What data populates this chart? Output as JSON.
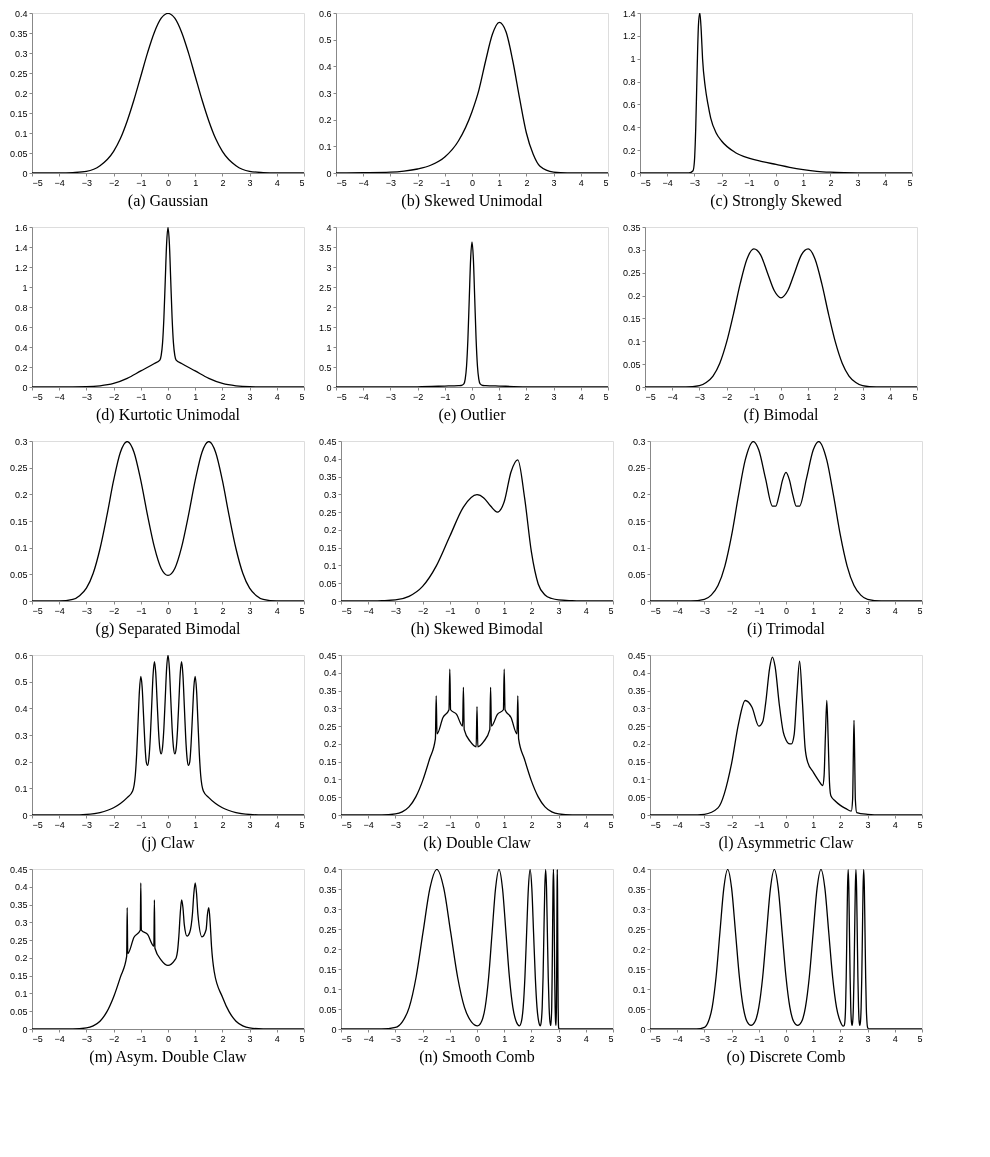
{
  "chart_data": [
    {
      "type": "line",
      "title": "(a) Gaussian",
      "color": "#000000",
      "xlim": [
        -5,
        5
      ],
      "xticks": [
        -5,
        -4,
        -3,
        -2,
        -1,
        0,
        1,
        2,
        3,
        4,
        5
      ],
      "ylim": [
        0,
        0.4
      ],
      "yticks": [
        0,
        0.05,
        0.1,
        0.15,
        0.2,
        0.25,
        0.3,
        0.35,
        0.4
      ],
      "x": [
        -5,
        -4,
        -3.5,
        -3,
        -2.5,
        -2,
        -1.75,
        -1.5,
        -1.25,
        -1,
        -0.75,
        -0.5,
        -0.25,
        0,
        0.25,
        0.5,
        0.75,
        1,
        1.25,
        1.5,
        1.75,
        2,
        2.5,
        3,
        3.5,
        4,
        5
      ],
      "values": [
        0,
        0,
        0.001,
        0.004,
        0.018,
        0.054,
        0.086,
        0.13,
        0.183,
        0.242,
        0.301,
        0.352,
        0.387,
        0.399,
        0.387,
        0.352,
        0.301,
        0.242,
        0.183,
        0.13,
        0.086,
        0.054,
        0.018,
        0.004,
        0.001,
        0,
        0
      ]
    },
    {
      "type": "line",
      "title": "(b) Skewed Unimodal",
      "color": "#000000",
      "xlim": [
        -5,
        5
      ],
      "xticks": [
        -5,
        -4,
        -3,
        -2,
        -1,
        0,
        1,
        2,
        3,
        4,
        5
      ],
      "ylim": [
        0,
        0.6
      ],
      "yticks": [
        0,
        0.1,
        0.2,
        0.3,
        0.4,
        0.5,
        0.6
      ],
      "x": [
        -5,
        -4,
        -3,
        -2.5,
        -2,
        -1.5,
        -1,
        -0.5,
        0,
        0.25,
        0.5,
        0.75,
        1,
        1.25,
        1.5,
        1.75,
        2,
        2.25,
        2.5,
        3,
        3.5,
        4,
        5
      ],
      "values": [
        0,
        0.001,
        0.003,
        0.007,
        0.015,
        0.03,
        0.06,
        0.12,
        0.23,
        0.31,
        0.42,
        0.52,
        0.565,
        0.53,
        0.42,
        0.28,
        0.15,
        0.07,
        0.025,
        0.003,
        0,
        0,
        0
      ]
    },
    {
      "type": "line",
      "title": "(c) Strongly Skewed",
      "color": "#000000",
      "xlim": [
        -5,
        5
      ],
      "xticks": [
        -5,
        -4,
        -3,
        -2,
        -1,
        0,
        1,
        2,
        3,
        4,
        5
      ],
      "ylim": [
        0,
        1.4
      ],
      "yticks": [
        0,
        0.2,
        0.4,
        0.6,
        0.8,
        1,
        1.2,
        1.4
      ],
      "x": [
        -5,
        -4,
        -3.2,
        -3.05,
        -3,
        -2.95,
        -2.9,
        -2.85,
        -2.8,
        -2.75,
        -2.7,
        -2.6,
        -2.5,
        -2.4,
        -2.2,
        -2,
        -1.5,
        -1,
        -0.5,
        0,
        0.5,
        1,
        1.5,
        2,
        2.5,
        3,
        4,
        5
      ],
      "values": [
        0,
        0,
        0,
        0.02,
        0.1,
        0.4,
        0.9,
        1.3,
        1.4,
        1.25,
        1.0,
        0.75,
        0.6,
        0.48,
        0.35,
        0.28,
        0.18,
        0.13,
        0.1,
        0.075,
        0.05,
        0.03,
        0.015,
        0.007,
        0.003,
        0.001,
        0,
        0
      ]
    },
    {
      "type": "line",
      "title": "(d) Kurtotic Unimodal",
      "color": "#000000",
      "xlim": [
        -5,
        5
      ],
      "xticks": [
        -5,
        -4,
        -3,
        -2,
        -1,
        0,
        1,
        2,
        3,
        4,
        5
      ],
      "ylim": [
        0,
        1.6
      ],
      "yticks": [
        0,
        0.2,
        0.4,
        0.6,
        0.8,
        1,
        1.2,
        1.4,
        1.6
      ],
      "x": [
        -5,
        -4,
        -3,
        -2.5,
        -2,
        -1.5,
        -1,
        -0.5,
        -0.3,
        -0.25,
        -0.2,
        -0.15,
        -0.1,
        -0.05,
        0,
        0.05,
        0.1,
        0.15,
        0.2,
        0.25,
        0.3,
        0.5,
        1,
        1.5,
        2,
        2.5,
        3,
        4,
        5
      ],
      "values": [
        0,
        0,
        0.003,
        0.012,
        0.036,
        0.087,
        0.161,
        0.235,
        0.269,
        0.316,
        0.441,
        0.695,
        1.071,
        1.439,
        1.596,
        1.439,
        1.071,
        0.695,
        0.441,
        0.316,
        0.269,
        0.235,
        0.161,
        0.087,
        0.036,
        0.012,
        0.003,
        0,
        0
      ]
    },
    {
      "type": "line",
      "title": "(e) Outlier",
      "color": "#000000",
      "xlim": [
        -5,
        5
      ],
      "xticks": [
        -5,
        -4,
        -3,
        -2,
        -1,
        0,
        1,
        2,
        3,
        4,
        5
      ],
      "ylim": [
        0,
        4
      ],
      "yticks": [
        0,
        0.5,
        1,
        1.5,
        2,
        2.5,
        3,
        3.5,
        4
      ],
      "x": [
        -5,
        -4,
        -3,
        -2,
        -1,
        -0.5,
        -0.4,
        -0.3,
        -0.25,
        -0.2,
        -0.15,
        -0.1,
        -0.05,
        0,
        0.05,
        0.1,
        0.15,
        0.2,
        0.25,
        0.3,
        0.4,
        0.5,
        1,
        2,
        3,
        4,
        5
      ],
      "values": [
        0,
        0,
        0,
        0.005,
        0.024,
        0.035,
        0.038,
        0.078,
        0.197,
        0.525,
        1.205,
        2.217,
        3.208,
        3.63,
        3.208,
        2.217,
        1.205,
        0.525,
        0.197,
        0.078,
        0.038,
        0.035,
        0.024,
        0.005,
        0,
        0,
        0
      ]
    },
    {
      "type": "line",
      "title": "(f) Bimodal",
      "color": "#000000",
      "xlim": [
        -5,
        5
      ],
      "xticks": [
        -5,
        -4,
        -3,
        -2,
        -1,
        0,
        1,
        2,
        3,
        4,
        5
      ],
      "ylim": [
        0,
        0.35
      ],
      "yticks": [
        0,
        0.05,
        0.1,
        0.15,
        0.2,
        0.25,
        0.3,
        0.35
      ],
      "x": [
        -5,
        -4,
        -3.5,
        -3,
        -2.75,
        -2.5,
        -2.25,
        -2,
        -1.75,
        -1.5,
        -1.25,
        -1,
        -0.75,
        -0.5,
        -0.25,
        0,
        0.25,
        0.5,
        0.75,
        1,
        1.25,
        1.5,
        1.75,
        2,
        2.25,
        2.5,
        2.75,
        3,
        3.5,
        4,
        5
      ],
      "values": [
        0,
        0,
        0,
        0.003,
        0.01,
        0.024,
        0.052,
        0.098,
        0.159,
        0.226,
        0.28,
        0.302,
        0.289,
        0.25,
        0.211,
        0.195,
        0.211,
        0.25,
        0.289,
        0.302,
        0.28,
        0.226,
        0.159,
        0.098,
        0.052,
        0.024,
        0.01,
        0.003,
        0,
        0,
        0
      ]
    },
    {
      "type": "line",
      "title": "(g) Separated Bimodal",
      "color": "#000000",
      "xlim": [
        -5,
        5
      ],
      "xticks": [
        -5,
        -4,
        -3,
        -2,
        -1,
        0,
        1,
        2,
        3,
        4,
        5
      ],
      "ylim": [
        0,
        0.3
      ],
      "yticks": [
        0,
        0.05,
        0.1,
        0.15,
        0.2,
        0.25,
        0.3
      ],
      "x": [
        -5,
        -4,
        -3.5,
        -3.25,
        -3,
        -2.75,
        -2.5,
        -2.25,
        -2,
        -1.75,
        -1.5,
        -1.25,
        -1,
        -0.75,
        -0.5,
        -0.25,
        0,
        0.25,
        0.5,
        0.75,
        1,
        1.25,
        1.5,
        1.75,
        2,
        2.25,
        2.5,
        2.75,
        3,
        3.25,
        3.5,
        4,
        5
      ],
      "values": [
        0,
        0,
        0.003,
        0.01,
        0.024,
        0.052,
        0.098,
        0.159,
        0.226,
        0.279,
        0.299,
        0.279,
        0.226,
        0.16,
        0.101,
        0.061,
        0.048,
        0.061,
        0.101,
        0.16,
        0.226,
        0.279,
        0.299,
        0.279,
        0.226,
        0.159,
        0.098,
        0.052,
        0.024,
        0.01,
        0.003,
        0,
        0
      ]
    },
    {
      "type": "line",
      "title": "(h) Skewed Bimodal",
      "color": "#000000",
      "xlim": [
        -5,
        5
      ],
      "xticks": [
        -5,
        -4,
        -3,
        -2,
        -1,
        0,
        1,
        2,
        3,
        4,
        5
      ],
      "ylim": [
        0,
        0.45
      ],
      "yticks": [
        0,
        0.05,
        0.1,
        0.15,
        0.2,
        0.25,
        0.3,
        0.35,
        0.4,
        0.45
      ],
      "x": [
        -5,
        -4,
        -3.5,
        -3,
        -2.5,
        -2,
        -1.5,
        -1,
        -0.5,
        0,
        0.25,
        0.5,
        0.75,
        1,
        1.25,
        1.5,
        1.75,
        2,
        2.25,
        2.5,
        2.75,
        3,
        3.5,
        4,
        5
      ],
      "values": [
        0,
        0,
        0.001,
        0.003,
        0.013,
        0.041,
        0.098,
        0.182,
        0.264,
        0.299,
        0.29,
        0.267,
        0.25,
        0.279,
        0.363,
        0.397,
        0.29,
        0.138,
        0.048,
        0.017,
        0.007,
        0.003,
        0.001,
        0,
        0
      ]
    },
    {
      "type": "line",
      "title": "(i) Trimodal",
      "color": "#000000",
      "xlim": [
        -5,
        5
      ],
      "xticks": [
        -5,
        -4,
        -3,
        -2,
        -1,
        0,
        1,
        2,
        3,
        4,
        5
      ],
      "ylim": [
        0,
        0.3
      ],
      "yticks": [
        0,
        0.05,
        0.1,
        0.15,
        0.2,
        0.25,
        0.3
      ],
      "x": [
        -5,
        -4,
        -3.5,
        -3,
        -2.75,
        -2.5,
        -2.25,
        -2,
        -1.75,
        -1.5,
        -1.2,
        -1,
        -0.75,
        -0.5,
        -0.375,
        -0.25,
        -0.125,
        0,
        0.125,
        0.25,
        0.375,
        0.5,
        0.75,
        1,
        1.2,
        1.5,
        1.75,
        2,
        2.25,
        2.5,
        2.75,
        3,
        3.5,
        4,
        5
      ],
      "values": [
        0,
        0,
        0,
        0.003,
        0.011,
        0.029,
        0.065,
        0.123,
        0.197,
        0.264,
        0.299,
        0.283,
        0.229,
        0.178,
        0.178,
        0.199,
        0.227,
        0.241,
        0.227,
        0.199,
        0.178,
        0.178,
        0.229,
        0.283,
        0.299,
        0.264,
        0.197,
        0.123,
        0.065,
        0.029,
        0.011,
        0.003,
        0,
        0,
        0
      ]
    },
    {
      "type": "line",
      "title": "(j) Claw",
      "color": "#000000",
      "xlim": [
        -5,
        5
      ],
      "xticks": [
        -5,
        -4,
        -3,
        -2,
        -1,
        0,
        1,
        2,
        3,
        4,
        5
      ],
      "ylim": [
        0,
        0.6
      ],
      "yticks": [
        0,
        0.1,
        0.2,
        0.3,
        0.4,
        0.5,
        0.6
      ],
      "x": [
        -5,
        -4,
        -3.5,
        -3,
        -2.5,
        -2,
        -1.75,
        -1.5,
        -1.3,
        -1.2,
        -1.15,
        -1.1,
        -1.05,
        -1,
        -0.95,
        -0.9,
        -0.85,
        -0.8,
        -0.75,
        -0.7,
        -0.65,
        -0.6,
        -0.55,
        -0.5,
        -0.45,
        -0.4,
        -0.35,
        -0.3,
        -0.25,
        -0.2,
        -0.15,
        -0.1,
        -0.05,
        0,
        0.05,
        0.1,
        0.15,
        0.2,
        0.25,
        0.3,
        0.35,
        0.4,
        0.45,
        0.5,
        0.55,
        0.6,
        0.65,
        0.7,
        0.75,
        0.8,
        0.85,
        0.9,
        0.95,
        1,
        1.05,
        1.1,
        1.15,
        1.2,
        1.3,
        1.5,
        1.75,
        2,
        2.5,
        3,
        3.5,
        4,
        5
      ],
      "values": [
        0,
        0,
        0,
        0.002,
        0.009,
        0.027,
        0.043,
        0.065,
        0.09,
        0.151,
        0.233,
        0.351,
        0.467,
        0.52,
        0.479,
        0.375,
        0.269,
        0.199,
        0.186,
        0.214,
        0.292,
        0.409,
        0.523,
        0.575,
        0.532,
        0.426,
        0.319,
        0.249,
        0.229,
        0.254,
        0.327,
        0.44,
        0.551,
        0.599,
        0.551,
        0.44,
        0.327,
        0.254,
        0.229,
        0.249,
        0.319,
        0.426,
        0.532,
        0.575,
        0.523,
        0.409,
        0.292,
        0.214,
        0.186,
        0.199,
        0.269,
        0.375,
        0.479,
        0.52,
        0.467,
        0.351,
        0.233,
        0.151,
        0.09,
        0.065,
        0.043,
        0.027,
        0.009,
        0.002,
        0,
        0,
        0
      ]
    },
    {
      "type": "line",
      "title": "(k) Double Claw",
      "color": "#000000",
      "xlim": [
        -5,
        5
      ],
      "xticks": [
        -5,
        -4,
        -3,
        -2,
        -1,
        0,
        1,
        2,
        3,
        4,
        5
      ],
      "ylim": [
        0,
        0.45
      ],
      "yticks": [
        0,
        0.05,
        0.1,
        0.15,
        0.2,
        0.25,
        0.3,
        0.35,
        0.4,
        0.45
      ],
      "x": [
        -5,
        -4,
        -3.5,
        -3,
        -2.75,
        -2.5,
        -2.25,
        -2,
        -1.75,
        -1.53,
        -1.5,
        -1.47,
        -1.25,
        -1.03,
        -1,
        -0.97,
        -0.75,
        -0.53,
        -0.5,
        -0.47,
        -0.25,
        -0.03,
        0,
        0.03,
        0.25,
        0.47,
        0.5,
        0.53,
        0.75,
        0.97,
        1,
        1.03,
        1.25,
        1.47,
        1.5,
        1.53,
        1.75,
        2,
        2.25,
        2.5,
        2.75,
        3,
        3.5,
        4,
        5
      ],
      "values": [
        0,
        0,
        0,
        0.003,
        0.009,
        0.023,
        0.051,
        0.096,
        0.156,
        0.214,
        0.335,
        0.228,
        0.274,
        0.296,
        0.41,
        0.296,
        0.283,
        0.25,
        0.359,
        0.24,
        0.207,
        0.192,
        0.305,
        0.192,
        0.207,
        0.24,
        0.359,
        0.25,
        0.283,
        0.296,
        0.41,
        0.296,
        0.274,
        0.228,
        0.335,
        0.214,
        0.156,
        0.096,
        0.051,
        0.023,
        0.009,
        0.003,
        0,
        0,
        0
      ]
    },
    {
      "type": "line",
      "title": "(l) Asymmetric Claw",
      "color": "#000000",
      "xlim": [
        -5,
        5
      ],
      "xticks": [
        -5,
        -4,
        -3,
        -2,
        -1,
        0,
        1,
        2,
        3,
        4,
        5
      ],
      "ylim": [
        0,
        0.45
      ],
      "yticks": [
        0,
        0.05,
        0.1,
        0.15,
        0.2,
        0.25,
        0.3,
        0.35,
        0.4,
        0.45
      ],
      "x": [
        -5,
        -4,
        -3.5,
        -3,
        -2.5,
        -2,
        -1.75,
        -1.5,
        -1.25,
        -1,
        -0.85,
        -0.75,
        -0.6,
        -0.5,
        -0.4,
        -0.25,
        -0.1,
        0,
        0.1,
        0.2,
        0.3,
        0.4,
        0.5,
        0.6,
        0.7,
        0.8,
        1,
        1.2,
        1.35,
        1.4,
        1.45,
        1.5,
        1.55,
        1.6,
        1.65,
        1.8,
        2,
        2.2,
        2.4,
        2.45,
        2.475,
        2.5,
        2.525,
        2.55,
        2.6,
        3,
        3.5,
        4,
        5
      ],
      "values": [
        0,
        0,
        0,
        0.002,
        0.02,
        0.145,
        0.255,
        0.322,
        0.303,
        0.25,
        0.264,
        0.313,
        0.414,
        0.444,
        0.417,
        0.313,
        0.233,
        0.211,
        0.201,
        0.2,
        0.226,
        0.34,
        0.433,
        0.323,
        0.191,
        0.148,
        0.121,
        0.097,
        0.083,
        0.11,
        0.225,
        0.322,
        0.216,
        0.09,
        0.054,
        0.04,
        0.027,
        0.018,
        0.011,
        0.045,
        0.165,
        0.266,
        0.164,
        0.043,
        0.007,
        0.002,
        0,
        0,
        0
      ]
    },
    {
      "type": "line",
      "title": "(m) Asym. Double Claw",
      "color": "#000000",
      "xlim": [
        -5,
        5
      ],
      "xticks": [
        -5,
        -4,
        -3,
        -2,
        -1,
        0,
        1,
        2,
        3,
        4,
        5
      ],
      "ylim": [
        0,
        0.45
      ],
      "yticks": [
        0,
        0.05,
        0.1,
        0.15,
        0.2,
        0.25,
        0.3,
        0.35,
        0.4,
        0.45
      ],
      "x": [
        -5,
        -4,
        -3.5,
        -3,
        -2.75,
        -2.5,
        -2.25,
        -2,
        -1.75,
        -1.52,
        -1.5,
        -1.48,
        -1.25,
        -1.02,
        -1,
        -0.98,
        -0.75,
        -0.52,
        -0.5,
        -0.48,
        -0.25,
        0,
        0.25,
        0.3,
        0.35,
        0.4,
        0.45,
        0.5,
        0.55,
        0.6,
        0.7,
        0.8,
        0.9,
        0.95,
        1,
        1.05,
        1.1,
        1.25,
        1.4,
        1.45,
        1.5,
        1.55,
        1.6,
        1.7,
        2,
        2.25,
        2.5,
        2.75,
        3,
        3.5,
        4,
        5
      ],
      "values": [
        0,
        0,
        0,
        0.003,
        0.009,
        0.022,
        0.048,
        0.09,
        0.146,
        0.204,
        0.341,
        0.212,
        0.258,
        0.278,
        0.411,
        0.278,
        0.266,
        0.233,
        0.363,
        0.227,
        0.194,
        0.179,
        0.194,
        0.2,
        0.219,
        0.262,
        0.325,
        0.363,
        0.341,
        0.293,
        0.261,
        0.272,
        0.325,
        0.381,
        0.411,
        0.381,
        0.322,
        0.259,
        0.279,
        0.322,
        0.341,
        0.299,
        0.232,
        0.161,
        0.09,
        0.048,
        0.022,
        0.009,
        0.003,
        0,
        0,
        0
      ]
    },
    {
      "type": "line",
      "title": "(n) Smooth Comb",
      "color": "#000000",
      "xlim": [
        -5,
        5
      ],
      "xticks": [
        -5,
        -4,
        -3,
        -2,
        -1,
        0,
        1,
        2,
        3,
        4,
        5
      ],
      "ylim": [
        0,
        0.4
      ],
      "yticks": [
        0,
        0.05,
        0.1,
        0.15,
        0.2,
        0.25,
        0.3,
        0.35,
        0.4
      ],
      "x": [
        -5,
        -4,
        -3.508,
        -3,
        -2.746,
        -2.492,
        -2.238,
        -1.984,
        -1.73,
        -1.476,
        -1.222,
        -0.968,
        -0.714,
        -0.46,
        -0.206,
        0.02,
        0.175,
        0.302,
        0.429,
        0.556,
        0.683,
        0.81,
        0.937,
        1.064,
        1.191,
        1.318,
        1.445,
        1.56,
        1.64,
        1.698,
        1.762,
        1.825,
        1.889,
        1.952,
        2.016,
        2.079,
        2.143,
        2.206,
        2.27,
        2.33,
        2.365,
        2.397,
        2.429,
        2.46,
        2.492,
        2.524,
        2.556,
        2.587,
        2.619,
        2.651,
        2.683,
        2.715,
        2.747,
        2.762,
        2.778,
        2.794,
        2.81,
        2.826,
        2.842,
        2.857,
        2.873,
        2.889,
        2.905,
        2.92,
        2.928,
        2.936,
        2.944,
        2.952,
        2.96,
        2.968,
        2.976,
        2.984,
        2.992,
        3,
        3.02,
        4,
        5
      ],
      "values": [
        0,
        0,
        0,
        0.004,
        0.018,
        0.054,
        0.13,
        0.242,
        0.352,
        0.399,
        0.352,
        0.242,
        0.13,
        0.054,
        0.018,
        0.008,
        0.02,
        0.055,
        0.13,
        0.242,
        0.352,
        0.399,
        0.352,
        0.242,
        0.13,
        0.054,
        0.018,
        0.008,
        0.021,
        0.054,
        0.13,
        0.242,
        0.352,
        0.399,
        0.352,
        0.242,
        0.13,
        0.054,
        0.018,
        0.008,
        0.02,
        0.054,
        0.13,
        0.242,
        0.352,
        0.399,
        0.352,
        0.242,
        0.13,
        0.054,
        0.018,
        0.009,
        0.054,
        0.13,
        0.242,
        0.352,
        0.399,
        0.352,
        0.242,
        0.13,
        0.054,
        0.018,
        0.009,
        0.054,
        0.13,
        0.242,
        0.352,
        0.399,
        0.352,
        0.242,
        0.13,
        0.054,
        0.018,
        0.004,
        0,
        0,
        0
      ]
    },
    {
      "type": "line",
      "title": "(o) Discrete Comb",
      "color": "#000000",
      "xlim": [
        -5,
        5
      ],
      "xticks": [
        -5,
        -4,
        -3,
        -2,
        -1,
        0,
        1,
        2,
        3,
        4,
        5
      ],
      "ylim": [
        0,
        0.4
      ],
      "yticks": [
        0,
        0.05,
        0.1,
        0.15,
        0.2,
        0.25,
        0.3,
        0.35,
        0.4
      ],
      "x": [
        -5,
        -4,
        -3.286,
        -3,
        -2.857,
        -2.714,
        -2.571,
        -2.429,
        -2.286,
        -2.143,
        -2,
        -1.857,
        -1.714,
        -1.571,
        -1.429,
        -1.286,
        -1.143,
        -1,
        -0.857,
        -0.714,
        -0.571,
        -0.429,
        -0.286,
        -0.143,
        0,
        0.143,
        0.286,
        0.429,
        0.571,
        0.714,
        0.857,
        1,
        1.143,
        1.286,
        1.429,
        1.571,
        1.714,
        1.857,
        2,
        2.1,
        2.143,
        2.167,
        2.19,
        2.214,
        2.238,
        2.262,
        2.286,
        2.31,
        2.333,
        2.357,
        2.381,
        2.405,
        2.429,
        2.452,
        2.476,
        2.5,
        2.524,
        2.548,
        2.571,
        2.595,
        2.619,
        2.643,
        2.667,
        2.69,
        2.714,
        2.738,
        2.762,
        2.786,
        2.81,
        2.833,
        2.857,
        2.881,
        2.905,
        2.929,
        2.952,
        2.976,
        3,
        3.05,
        4,
        5
      ],
      "values": [
        0,
        0,
        0,
        0.004,
        0.018,
        0.054,
        0.13,
        0.242,
        0.352,
        0.399,
        0.352,
        0.242,
        0.13,
        0.054,
        0.018,
        0.009,
        0.018,
        0.054,
        0.13,
        0.242,
        0.352,
        0.399,
        0.352,
        0.242,
        0.13,
        0.054,
        0.018,
        0.009,
        0.018,
        0.054,
        0.13,
        0.242,
        0.352,
        0.399,
        0.352,
        0.242,
        0.13,
        0.054,
        0.018,
        0.007,
        0.009,
        0.02,
        0.054,
        0.13,
        0.242,
        0.352,
        0.399,
        0.352,
        0.242,
        0.13,
        0.054,
        0.018,
        0.009,
        0.018,
        0.054,
        0.13,
        0.242,
        0.352,
        0.399,
        0.352,
        0.242,
        0.13,
        0.054,
        0.018,
        0.009,
        0.018,
        0.054,
        0.13,
        0.242,
        0.352,
        0.399,
        0.352,
        0.242,
        0.13,
        0.054,
        0.018,
        0.004,
        0,
        0,
        0
      ]
    }
  ]
}
